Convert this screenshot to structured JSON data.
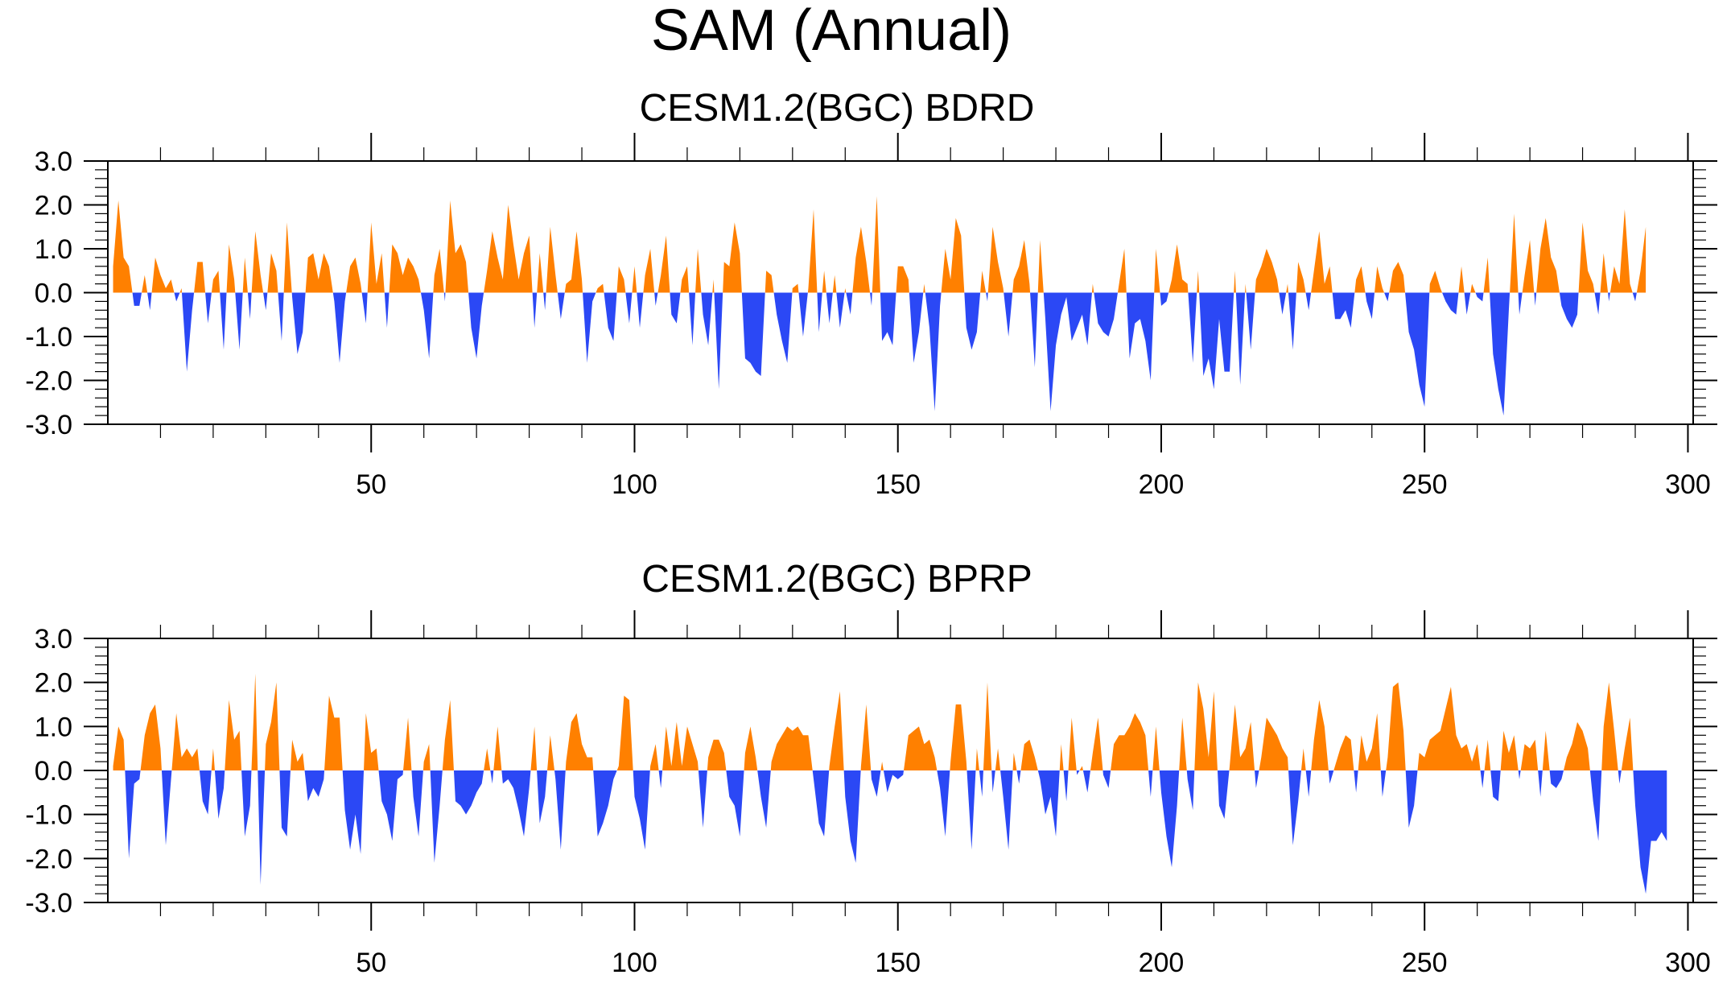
{
  "figure": {
    "title": "SAM (Annual)",
    "colors": {
      "positive": "#ff8000",
      "negative": "#2b48f5",
      "axis": "#000000"
    }
  },
  "chart_data": [
    {
      "type": "area",
      "title": "CESM1.2(BGC) BDRD",
      "xlabel": "",
      "ylabel": "",
      "xlim": [
        0,
        301
      ],
      "ylim": [
        -3,
        3
      ],
      "x_ticks": [
        50,
        100,
        150,
        200,
        250,
        300
      ],
      "x_tick_labels": [
        "50",
        "100",
        "150",
        "200",
        "250",
        "300"
      ],
      "y_ticks": [
        -3,
        -2,
        -1,
        0,
        1,
        2,
        3
      ],
      "y_tick_labels": [
        "-3.0",
        "-2.0",
        "-1.0",
        "0.0",
        "1.0",
        "2.0",
        "3.0"
      ],
      "grid": false,
      "x_start": 1,
      "values": [
        0.6,
        2.1,
        0.8,
        0.6,
        -0.3,
        -0.3,
        0.4,
        -0.4,
        0.8,
        0.4,
        0.1,
        0.3,
        -0.2,
        0.1,
        -1.8,
        -0.4,
        0.7,
        0.7,
        -0.7,
        0.3,
        0.5,
        -1.3,
        1.1,
        0.3,
        -1.3,
        0.8,
        -0.6,
        1.4,
        0.4,
        -0.4,
        0.9,
        0.5,
        -1.1,
        1.6,
        -0.1,
        -1.4,
        -0.9,
        0.8,
        0.9,
        0.3,
        0.9,
        0.6,
        -0.2,
        -1.6,
        -0.2,
        0.6,
        0.8,
        0.2,
        -0.7,
        1.6,
        0.2,
        0.9,
        -0.8,
        1.1,
        0.9,
        0.4,
        0.8,
        0.6,
        0.3,
        -0.4,
        -1.5,
        0.4,
        1.0,
        -0.2,
        2.1,
        0.9,
        1.1,
        0.7,
        -0.8,
        -1.5,
        -0.3,
        0.5,
        1.4,
        0.8,
        0.3,
        2.0,
        1.1,
        0.3,
        0.9,
        1.3,
        -0.8,
        0.9,
        -0.4,
        1.5,
        0.4,
        -0.6,
        0.2,
        0.3,
        1.4,
        0.3,
        -1.6,
        -0.2,
        0.1,
        0.2,
        -0.8,
        -1.1,
        0.6,
        0.3,
        -0.7,
        0.6,
        -0.8,
        0.4,
        1.0,
        -0.3,
        0.4,
        1.3,
        -0.5,
        -0.7,
        0.3,
        0.6,
        -1.2,
        1.0,
        -0.5,
        -1.2,
        0.3,
        -2.2,
        0.7,
        0.6,
        1.6,
        0.9,
        -1.5,
        -1.6,
        -1.8,
        -1.9,
        0.5,
        0.4,
        -0.5,
        -1.1,
        -1.6,
        0.1,
        0.2,
        -1.0,
        0.1,
        1.9,
        -0.9,
        0.5,
        -0.7,
        0.4,
        -0.8,
        0.1,
        -0.5,
        0.8,
        1.5,
        0.7,
        -0.3,
        2.2,
        -1.1,
        -0.9,
        -1.2,
        0.6,
        0.6,
        0.3,
        -1.6,
        -0.9,
        0.2,
        -0.8,
        -2.7,
        -0.3,
        1.0,
        0.3,
        1.7,
        1.3,
        -0.8,
        -1.3,
        -0.9,
        0.5,
        -0.2,
        1.5,
        0.7,
        0.1,
        -1.0,
        0.3,
        0.6,
        1.2,
        0.2,
        -1.7,
        1.2,
        -0.6,
        -2.7,
        -1.2,
        -0.5,
        -0.1,
        -1.1,
        -0.8,
        -0.5,
        -1.2,
        0.2,
        -0.7,
        -0.9,
        -1.0,
        -0.6,
        0.2,
        1.0,
        -1.5,
        -0.7,
        -0.6,
        -1.1,
        -2.0,
        1.0,
        -0.3,
        -0.2,
        0.3,
        1.1,
        0.3,
        0.2,
        -1.6,
        0.5,
        -1.9,
        -1.5,
        -2.2,
        -0.6,
        -1.8,
        -1.8,
        0.5,
        -2.1,
        0.2,
        -1.3,
        0.3,
        0.6,
        1.0,
        0.7,
        0.3,
        -0.5,
        0.2,
        -1.3,
        0.7,
        0.3,
        -0.4,
        0.5,
        1.4,
        0.2,
        0.6,
        -0.6,
        -0.6,
        -0.4,
        -0.8,
        0.3,
        0.6,
        -0.2,
        -0.6,
        0.6,
        0.1,
        -0.2,
        0.5,
        0.7,
        0.4,
        -0.9,
        -1.3,
        -2.1,
        -2.6,
        0.2,
        0.5,
        0.1,
        -0.2,
        -0.4,
        -0.5,
        0.6,
        -0.5,
        0.2,
        -0.1,
        -0.2,
        0.8,
        -1.4,
        -2.2,
        -2.8,
        -0.4,
        1.8,
        -0.5,
        0.4,
        1.2,
        -0.3,
        1.0,
        1.7,
        0.8,
        0.5,
        -0.3,
        -0.6,
        -0.8,
        -0.5,
        1.6,
        0.5,
        0.2,
        -0.5,
        0.9,
        -0.2,
        0.6,
        0.2,
        1.9,
        0.2,
        -0.2,
        0.5,
        1.5
      ]
    },
    {
      "type": "area",
      "title": "CESM1.2(BGC) BPRP",
      "xlabel": "",
      "ylabel": "",
      "xlim": [
        0,
        301
      ],
      "ylim": [
        -3,
        3
      ],
      "x_ticks": [
        50,
        100,
        150,
        200,
        250,
        300
      ],
      "x_tick_labels": [
        "50",
        "100",
        "150",
        "200",
        "250",
        "300"
      ],
      "y_ticks": [
        -3,
        -2,
        -1,
        0,
        1,
        2,
        3
      ],
      "y_tick_labels": [
        "-3.0",
        "-2.0",
        "-1.0",
        "0.0",
        "1.0",
        "2.0",
        "3.0"
      ],
      "grid": false,
      "x_start": 1,
      "values": [
        0.1,
        1.0,
        0.7,
        -2.0,
        -0.3,
        -0.2,
        0.8,
        1.3,
        1.5,
        0.5,
        -1.7,
        -0.2,
        1.3,
        0.3,
        0.5,
        0.3,
        0.5,
        -0.7,
        -1.0,
        0.5,
        -1.1,
        -0.4,
        1.6,
        0.7,
        0.9,
        -1.5,
        -0.8,
        2.2,
        -2.6,
        0.6,
        1.1,
        2.0,
        -1.3,
        -1.5,
        0.7,
        0.2,
        0.4,
        -0.7,
        -0.4,
        -0.6,
        -0.2,
        1.7,
        1.2,
        1.2,
        -0.9,
        -1.8,
        -1.0,
        -1.9,
        1.3,
        0.4,
        0.5,
        -0.7,
        -1.0,
        -1.6,
        -0.2,
        -0.1,
        1.2,
        -0.6,
        -1.5,
        0.2,
        0.6,
        -2.1,
        -0.8,
        0.7,
        1.6,
        -0.7,
        -0.8,
        -1.0,
        -0.8,
        -0.5,
        -0.3,
        0.5,
        -0.3,
        1.0,
        -0.3,
        -0.2,
        -0.4,
        -0.9,
        -1.5,
        -0.4,
        1.0,
        -1.2,
        -0.6,
        0.8,
        -0.2,
        -1.8,
        0.2,
        1.1,
        1.3,
        0.6,
        0.3,
        0.3,
        -1.5,
        -1.2,
        -0.8,
        -0.2,
        0.1,
        1.7,
        1.6,
        -0.6,
        -1.1,
        -1.8,
        0.1,
        0.6,
        -0.4,
        1.0,
        0.1,
        1.1,
        0.1,
        1.0,
        0.6,
        0.2,
        -1.3,
        0.3,
        0.7,
        0.7,
        0.4,
        -0.6,
        -0.8,
        -1.5,
        0.4,
        1.0,
        0.3,
        -0.6,
        -1.3,
        0.2,
        0.6,
        0.8,
        1.0,
        0.9,
        1.0,
        0.8,
        0.8,
        -0.2,
        -1.2,
        -1.5,
        0.1,
        1.0,
        1.8,
        -0.6,
        -1.6,
        -2.1,
        0.1,
        1.5,
        -0.2,
        -0.6,
        0.2,
        -0.5,
        -0.1,
        -0.2,
        -0.1,
        0.8,
        0.9,
        1.0,
        0.6,
        0.7,
        0.3,
        -0.4,
        -1.5,
        0.2,
        1.5,
        1.5,
        0.2,
        -1.8,
        0.5,
        -0.6,
        2.0,
        -0.5,
        0.5,
        -0.6,
        -1.8,
        0.4,
        -0.3,
        0.6,
        0.7,
        0.3,
        -0.2,
        -1.0,
        -0.6,
        -1.5,
        0.6,
        -0.7,
        1.2,
        -0.1,
        0.1,
        -0.5,
        0.4,
        1.2,
        -0.1,
        -0.4,
        0.6,
        0.8,
        0.8,
        1.0,
        1.3,
        1.1,
        0.8,
        -0.6,
        1.0,
        -0.5,
        -1.5,
        -2.2,
        -0.8,
        1.2,
        -0.2,
        -0.9,
        2.0,
        1.4,
        0.3,
        1.8,
        -0.8,
        -1.1,
        0.1,
        1.5,
        0.3,
        0.5,
        1.1,
        -0.4,
        0.3,
        1.2,
        1.0,
        0.8,
        0.5,
        0.3,
        -1.7,
        -0.7,
        0.5,
        -0.6,
        0.7,
        1.6,
        1.0,
        -0.3,
        0.1,
        0.5,
        0.8,
        0.7,
        -0.5,
        0.8,
        0.2,
        0.5,
        1.3,
        -0.6,
        0.3,
        1.9,
        2.0,
        0.9,
        -1.3,
        -0.8,
        0.4,
        0.3,
        0.7,
        0.8,
        0.9,
        1.4,
        1.9,
        0.8,
        0.5,
        0.6,
        0.2,
        0.6,
        -0.4,
        0.7,
        -0.6,
        -0.7,
        0.9,
        0.4,
        0.8,
        -0.2,
        0.6,
        0.5,
        0.7,
        -0.6,
        0.9,
        -0.3,
        -0.4,
        -0.2,
        0.3,
        0.6,
        1.1,
        0.9,
        0.5,
        -0.7,
        -1.6,
        1.0,
        2.0,
        0.9,
        -0.3,
        0.5,
        1.2,
        -0.8,
        -2.2,
        -2.8,
        -1.6,
        -1.6,
        -1.4,
        -1.6
      ]
    }
  ]
}
